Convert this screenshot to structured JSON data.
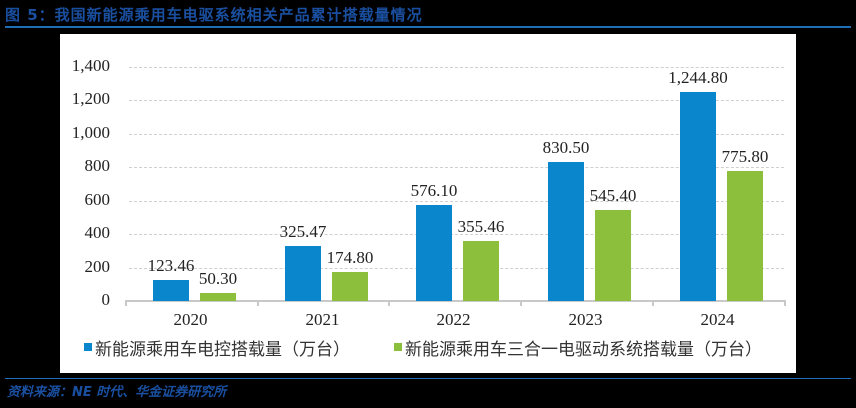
{
  "figure": {
    "title": "图 5：我国新能源乘用车电驱系统相关产品累计搭载量情况",
    "source": "资料来源：NE 时代、华金证券研究所",
    "colors": {
      "title": "#1a4fa0",
      "rule": "#1f6db4",
      "series0": "#0a87cc",
      "series1": "#8cc03c"
    }
  },
  "chart_data": {
    "type": "bar",
    "title": "我国新能源乘用车电驱系统相关产品累计搭载量情况",
    "xlabel": "",
    "ylabel": "",
    "categories": [
      "2020",
      "2021",
      "2022",
      "2023",
      "2024"
    ],
    "series": [
      {
        "name": "新能源乘用车电控搭载量（万台）",
        "color": "#0a87cc",
        "values": [
          123.46,
          325.47,
          576.1,
          830.5,
          1244.8
        ],
        "labels": [
          "123.46",
          "325.47",
          "576.10",
          "830.50",
          "1,244.80"
        ]
      },
      {
        "name": "新能源乘用车三合一电驱动系统搭载量（万台）",
        "color": "#8cc03c",
        "values": [
          50.3,
          174.8,
          355.46,
          545.4,
          775.8
        ],
        "labels": [
          "50.30",
          "174.80",
          "355.46",
          "545.40",
          "775.80"
        ]
      }
    ],
    "ylim": [
      0,
      1400
    ],
    "yticks": [
      "0",
      "200",
      "400",
      "600",
      "800",
      "1,000",
      "1,200",
      "1,400"
    ],
    "ytick_values": [
      0,
      200,
      400,
      600,
      800,
      1000,
      1200,
      1400
    ],
    "grid": true,
    "grid_style": "dashed",
    "legend_position": "bottom"
  }
}
